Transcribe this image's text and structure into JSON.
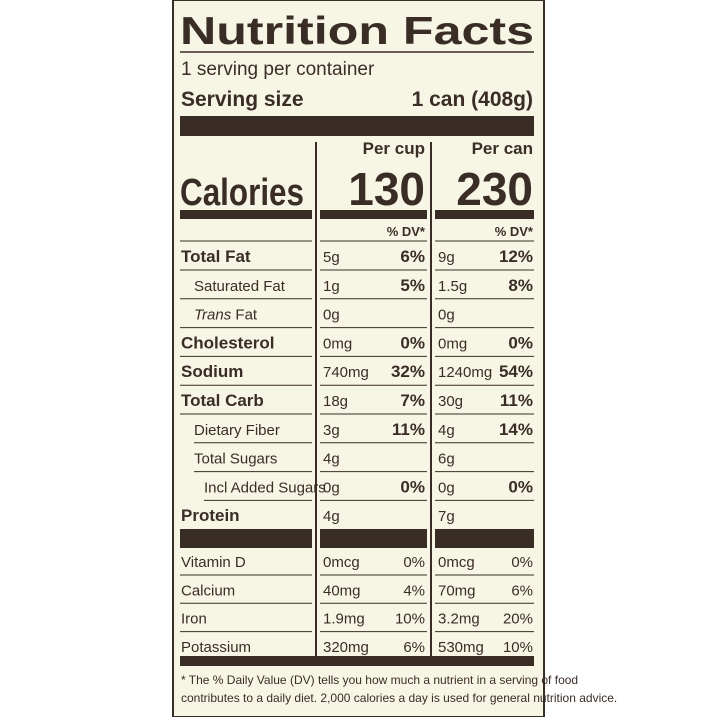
{
  "label": {
    "title": "Nutrition Facts",
    "servings": "1 serving per container",
    "serving_size_label": "Serving size",
    "serving_size_value": "1 can (408g)",
    "calories_label": "Calories",
    "columns": [
      {
        "header": "Per cup",
        "calories": "130",
        "dv_header": "% DV*"
      },
      {
        "header": "Per can",
        "calories": "230",
        "dv_header": "% DV*"
      }
    ],
    "nutrients": [
      {
        "name": "Total Fat",
        "cup": "5g",
        "cup_dv": "6%",
        "can": "9g",
        "can_dv": "12%"
      },
      {
        "name": "Saturated Fat",
        "cup": "1g",
        "cup_dv": "5%",
        "can": "1.5g",
        "can_dv": "8%"
      },
      {
        "name_italic": "Trans",
        "name": "Fat",
        "cup": "0g",
        "can": "0g"
      },
      {
        "name": "Cholesterol",
        "cup": "0mg",
        "cup_dv": "0%",
        "can": "0mg",
        "can_dv": "0%"
      },
      {
        "name": "Sodium",
        "cup": "740mg",
        "cup_dv": "32%",
        "can": "1240mg",
        "can_dv": "54%"
      },
      {
        "name": "Total Carb",
        "cup": "18g",
        "cup_dv": "7%",
        "can": "30g",
        "can_dv": "11%"
      },
      {
        "name": "Dietary Fiber",
        "cup": "3g",
        "cup_dv": "11%",
        "can": "4g",
        "can_dv": "14%"
      },
      {
        "name": "Total Sugars",
        "cup": "4g",
        "can": "6g"
      },
      {
        "name": "Incl Added Sugars",
        "cup": "0g",
        "cup_dv": "0%",
        "can": "0g",
        "can_dv": "0%"
      },
      {
        "name": "Protein",
        "cup": "4g",
        "can": "7g"
      }
    ],
    "vitamins": [
      {
        "name": "Vitamin D",
        "cup": "0mcg",
        "cup_dv": "0%",
        "can": "0mcg",
        "can_dv": "0%"
      },
      {
        "name": "Calcium",
        "cup": "40mg",
        "cup_dv": "4%",
        "can": "70mg",
        "can_dv": "6%"
      },
      {
        "name": "Iron",
        "cup": "1.9mg",
        "cup_dv": "10%",
        "can": "3.2mg",
        "can_dv": "20%"
      },
      {
        "name": "Potassium",
        "cup": "320mg",
        "cup_dv": "6%",
        "can": "530mg",
        "can_dv": "10%"
      }
    ],
    "footnote": [
      "* The % Daily Value (DV) tells you how much a nutrient in a serving of food",
      "contributes to a daily diet. 2,000 calories a day is used for general nutrition advice."
    ]
  }
}
